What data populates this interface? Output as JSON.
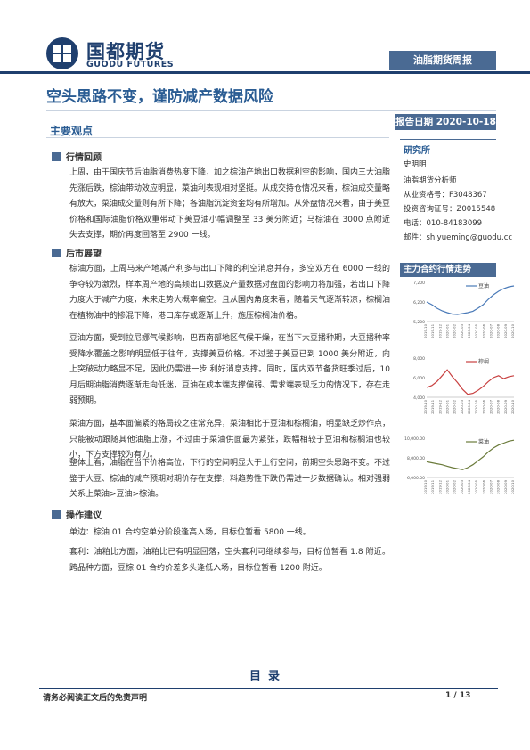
{
  "header": {
    "logo_cn": "国都期货",
    "logo_en": "GUODU FUTURES",
    "banner": "油脂期货周报"
  },
  "title": "空头思路不变，谨防减产数据风险",
  "report_date": "报告日期 2020-10-18",
  "main_heading": "主要观点",
  "sections": [
    {
      "heading": "行情回顾",
      "paragraphs": [
        "上周，由于国庆节后油脂消费热度下降，加之棕油产地出口数据利空的影响，国内三大油脂先涨后跌，棕油带动效应明显，菜油利表现相对坚挺。从成交持仓情况来看，棕油成交量略有放大，菜油成交量则有所下降；各油脂沉淀资金均有所增加。从外盘情况来看，由于美豆价格和国际油脂价格双重带动下美豆油小幅调整至 33 美分附近；马棕油在 3000 点附近失去支撑，期价再度回落至 2900 一线。"
      ]
    },
    {
      "heading": "后市展望",
      "paragraphs": [
        "棕油方面，上周马来产地减产利多与出口下降的利空消息并存，多空双方在 6000 一线的争夺较为激烈，样本周产地的高频出口数据及产量数据对盘面的影响力将加强，若出口下降力度大于减产力度，未来走势大概率偏空。且从国内角度来看，随着天气逐渐转凉，棕榈油在植物油中的掺混下降，港口库存或逐渐上升，施压棕榈油价格。",
        "豆油方面，受到拉尼娜气候影响，巴西南部地区气候干燥，在当下大豆播种期，大豆播种率受降水覆盖之影响明显低于往年，支撑美豆价格。不过鉴于美豆已到 1000 美分附近，向上突破动力略显不足，因此仍需进一步 利好消息支撑。同时，国内双节备货旺季过后，10 月后期油脂消费逐渐走向低迷，豆油在成本端支撑偏弱、需求端表现乏力的情况下，存在走弱预期。",
        "菜油方面，基本面偏紧的格局较之往常充异，菜油相比于豆油和棕榈油，明显缺乏炒作点，只能被动跟随其他油脂上涨，不过由于菜油供面最为紧张，跌幅相较于豆油和棕榈油也较小，下方支撑较为有力。",
        "整体上看，油脂在当下价格高位，下行的空间明显大于上行空间，前期空头思路不变。不过鉴于大豆、棕油的减产预期对期价存在支撑，料趋势性下跌仍需进一步数据确认。相对强弱关系上菜油>豆油>棕油。"
      ]
    },
    {
      "heading": "操作建议",
      "paragraphs": [
        "单边：棕油 01 合约空单分阶段逢高入场，目标位暂看 5800 一线。",
        "套利：油粕比方面，油粕比已有明显回落，空头套利可继续参与，目标位暂看 1.8 附近。跨品种方面，豆棕 01 合约价差多头逢低入场，目标位暂看 1200 附近。"
      ]
    }
  ],
  "sidebar": {
    "heading": "研究所",
    "items": [
      "史明明",
      "油脂期货分析师",
      "从业资格号：F3048367",
      "投资咨询证号：Z0015548",
      "电话：010-84183099",
      "邮件：shiyueming@guodu.cc"
    ],
    "chart_heading": "主力合约行情走势"
  },
  "chart_data": [
    {
      "type": "line",
      "title": "",
      "series": [
        {
          "name": "豆油",
          "color": "#4a7ab8",
          "values": [
            6300,
            6150,
            5950,
            5800,
            5700,
            5620,
            5600,
            5650,
            5700,
            5780,
            5950,
            6150,
            6450,
            6700,
            6900,
            7050,
            7150,
            7200
          ]
        }
      ],
      "ylim": [
        5200,
        7400
      ],
      "yticks": [
        "7,200",
        "6,200",
        "5,200"
      ],
      "xticks": [
        "2019-10",
        "2019-11",
        "2019-12",
        "2020-01",
        "2020-02",
        "2020-03",
        "2020-04",
        "2020-05",
        "2020-06",
        "2020-07",
        "2020-08",
        "2020-09",
        "2020-10"
      ]
    },
    {
      "type": "line",
      "title": "",
      "series": [
        {
          "name": "棕榈",
          "color": "#c84040",
          "values": [
            5000,
            5200,
            5600,
            6200,
            6800,
            6100,
            5500,
            4800,
            4300,
            4400,
            4700,
            5100,
            5600,
            6000,
            6200,
            5900,
            6100,
            6200
          ]
        }
      ],
      "ylim": [
        4000,
        8000
      ],
      "yticks": [
        "8,000",
        "6,000",
        "4,000"
      ],
      "xticks": [
        "2019-10",
        "2019-11",
        "2019-12",
        "2020-01",
        "2020-02",
        "2020-03",
        "2020-04",
        "2020-05",
        "2020-06",
        "2020-07",
        "2020-08",
        "2020-09",
        "2020-10"
      ]
    },
    {
      "type": "line",
      "title": "",
      "series": [
        {
          "name": "菜油",
          "color": "#6a7a3a",
          "values": [
            7600,
            7500,
            7400,
            7300,
            7150,
            7000,
            6900,
            6800,
            7000,
            7300,
            7700,
            8100,
            8600,
            9000,
            9300,
            9500,
            9700,
            9800
          ]
        }
      ],
      "ylim": [
        6000,
        10000
      ],
      "yticks": [
        "10,000.00",
        "8,000.00",
        "6,000.00"
      ],
      "xticks": [
        "2019-10",
        "2019-11",
        "2019-12",
        "2020-01",
        "2020-02",
        "2020-03",
        "2020-04",
        "2020-05",
        "2020-06",
        "2020-07",
        "2020-08",
        "2020-09",
        "2020-10"
      ]
    }
  ],
  "toc_label": "目录",
  "footer": {
    "disclaimer": "请务必阅读正文后的免责声明",
    "page": "1 / 13"
  }
}
